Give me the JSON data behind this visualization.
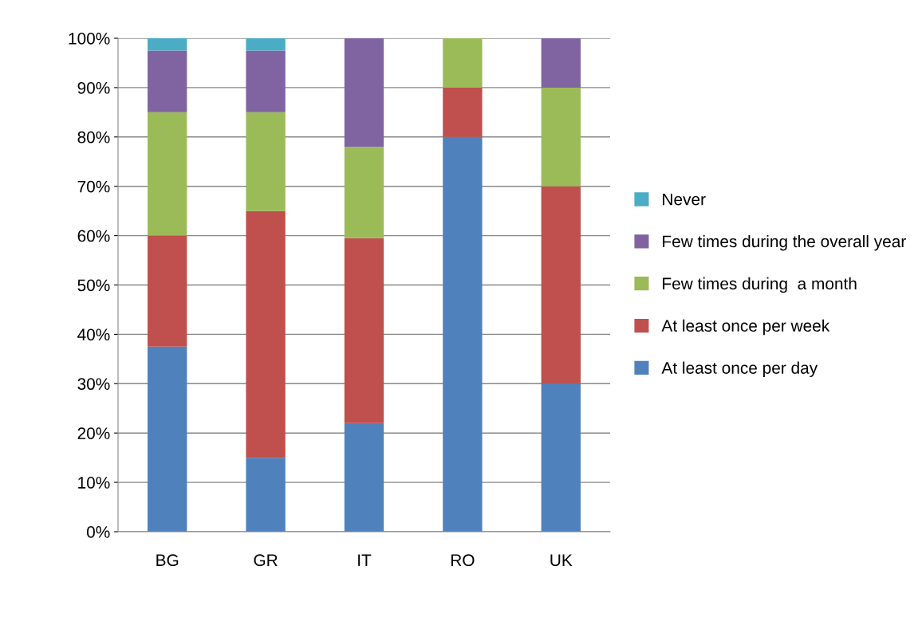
{
  "chart_data": {
    "type": "bar",
    "stacked": true,
    "categories": [
      "BG",
      "GR",
      "IT",
      "RO",
      "UK"
    ],
    "series": [
      {
        "name": "At least once per day",
        "color": "#4f81bd",
        "values": [
          37.5,
          15,
          22,
          80,
          30
        ]
      },
      {
        "name": "At least once per week",
        "color": "#c0504d",
        "values": [
          22.5,
          50,
          37.5,
          10,
          40
        ]
      },
      {
        "name": "Few times during  a month",
        "color": "#9bbb59",
        "values": [
          25,
          20,
          18.5,
          10,
          20
        ]
      },
      {
        "name": "Few times during the overall year",
        "color": "#8064a2",
        "values": [
          12.5,
          12.5,
          22,
          0,
          10
        ]
      },
      {
        "name": "Never",
        "color": "#4bacc6",
        "values": [
          2.5,
          2.5,
          0,
          0,
          0
        ]
      }
    ],
    "ylim": [
      0,
      100
    ],
    "yticks": [
      {
        "value": 0,
        "label": "0%"
      },
      {
        "value": 10,
        "label": "10%"
      },
      {
        "value": 20,
        "label": "20%"
      },
      {
        "value": 30,
        "label": "30%"
      },
      {
        "value": 40,
        "label": "40%"
      },
      {
        "value": 50,
        "label": "50%"
      },
      {
        "value": 60,
        "label": "60%"
      },
      {
        "value": 70,
        "label": "70%"
      },
      {
        "value": 80,
        "label": "80%"
      },
      {
        "value": 90,
        "label": "90%"
      },
      {
        "value": 100,
        "label": "100%"
      }
    ],
    "grid": "y",
    "legend": "right"
  }
}
